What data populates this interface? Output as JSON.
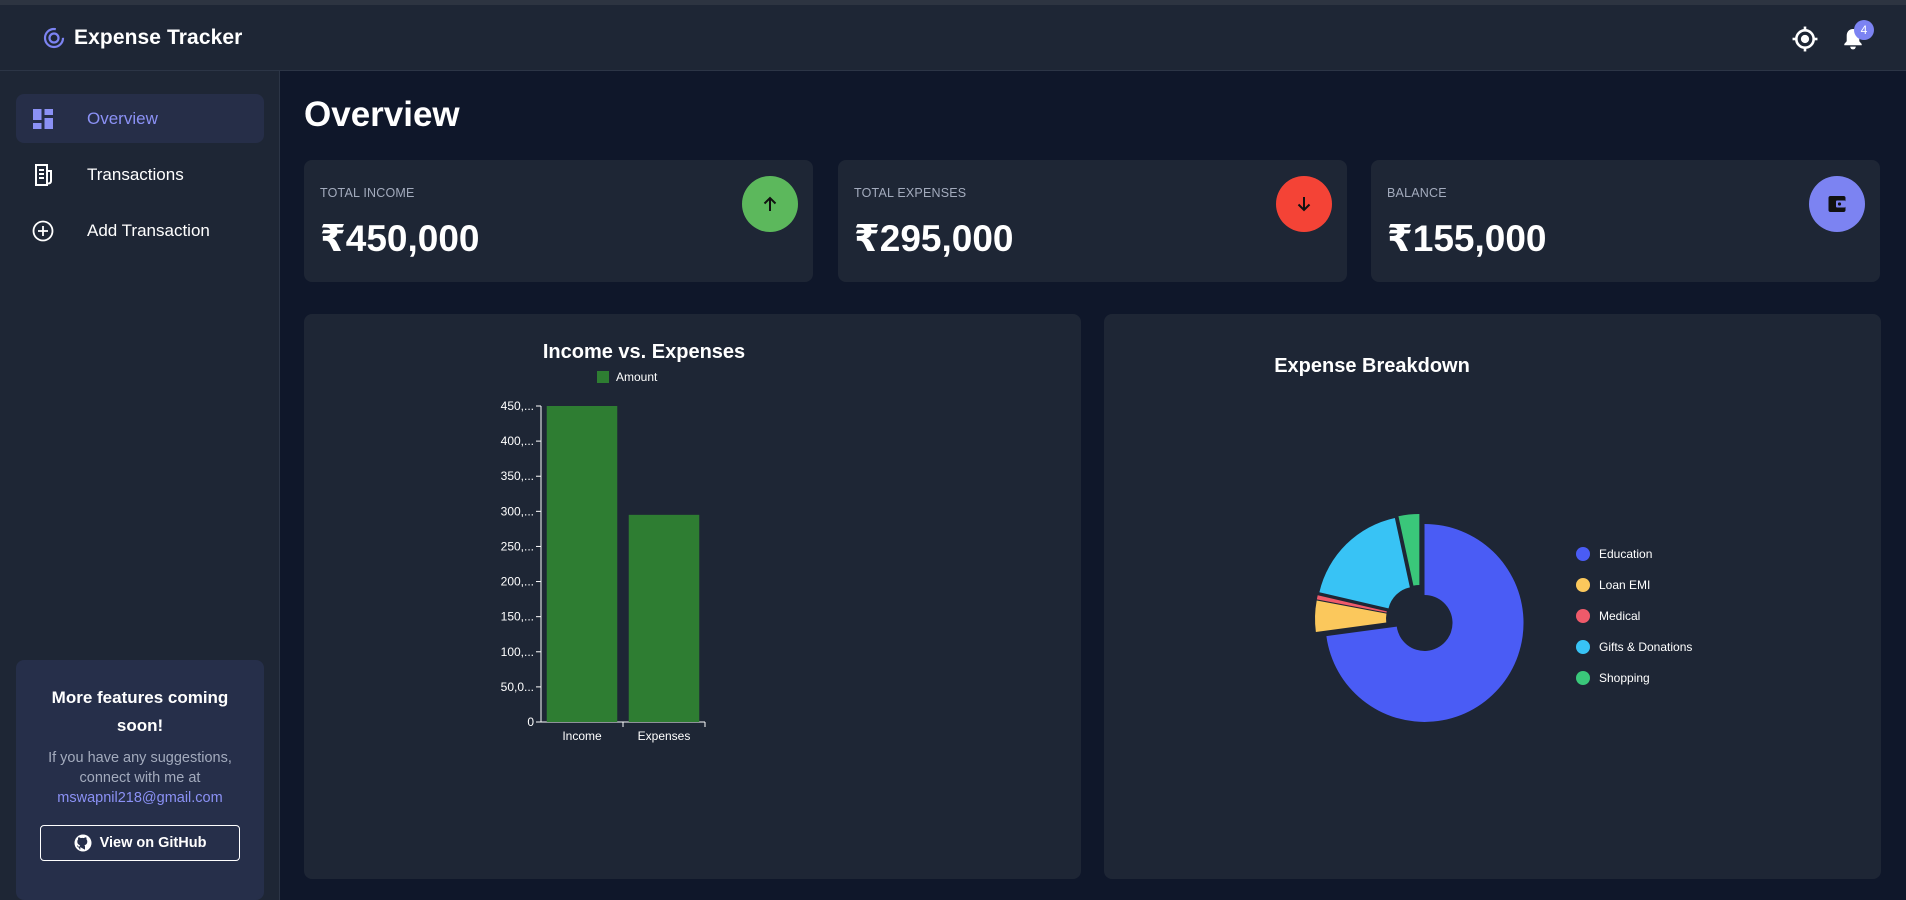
{
  "app": {
    "title": "Expense Tracker"
  },
  "header": {
    "notifications_count": "4",
    "theme_icon": "brightness-icon",
    "bell_icon": "bell-icon"
  },
  "sidebar": {
    "items": [
      {
        "label": "Overview",
        "icon": "dashboard-icon",
        "active": true
      },
      {
        "label": "Transactions",
        "icon": "receipt-icon",
        "active": false
      },
      {
        "label": "Add Transaction",
        "icon": "plus-circle-icon",
        "active": false
      }
    ],
    "promo": {
      "title": "More features coming soon!",
      "text": "If you have any suggestions, connect with me at",
      "email": "mswapnil218@gmail.com",
      "button": "View on GitHub"
    }
  },
  "main": {
    "title": "Overview",
    "cards": [
      {
        "label": "TOTAL INCOME",
        "value": "₹450,000",
        "icon": "arrow-up-icon",
        "color": "#5cb85c"
      },
      {
        "label": "TOTAL EXPENSES",
        "value": "₹295,000",
        "icon": "arrow-down-icon",
        "color": "#f44336"
      },
      {
        "label": "BALANCE",
        "value": "₹155,000",
        "icon": "wallet-icon",
        "color": "#7c83f2"
      }
    ]
  },
  "chart_data": [
    {
      "type": "bar",
      "title": "Income vs. Expenses",
      "legend": [
        "Amount"
      ],
      "categories": [
        "Income",
        "Expenses"
      ],
      "values": [
        450000,
        295000
      ],
      "ylim": [
        0,
        450000
      ],
      "yticks": [
        0,
        50000,
        100000,
        150000,
        200000,
        250000,
        300000,
        350000,
        400000,
        450000
      ],
      "ytick_labels": [
        "0",
        "50,0...",
        "100,...",
        "150,...",
        "200,...",
        "250,...",
        "300,...",
        "350,...",
        "400,...",
        "450,..."
      ],
      "color": "#2e7d32"
    },
    {
      "type": "pie",
      "title": "Expense Breakdown",
      "legend_position": "right",
      "slices": [
        {
          "label": "Education",
          "value": 215000,
          "color": "#4a5cf5"
        },
        {
          "label": "Loan EMI",
          "value": 15000,
          "color": "#fbc85c"
        },
        {
          "label": "Medical",
          "value": 2000,
          "color": "#ef5a6a"
        },
        {
          "label": "Gifts & Donations",
          "value": 53000,
          "color": "#38c3f5"
        },
        {
          "label": "Shopping",
          "value": 10000,
          "color": "#3ac77a"
        }
      ]
    }
  ]
}
